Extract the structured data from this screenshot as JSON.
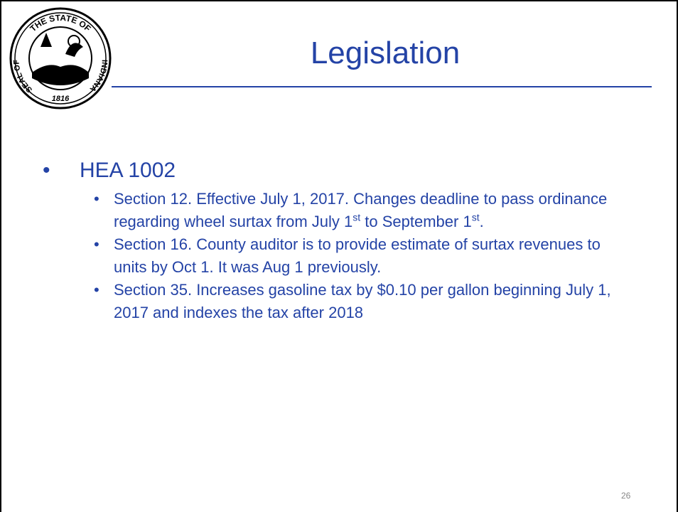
{
  "seal": {
    "top": "THE STATE OF",
    "left": "SEAL OF",
    "right": "INDIANA",
    "year": "1816"
  },
  "title": "Legislation",
  "bullets": [
    {
      "text": "HEA 1002",
      "items": [
        {
          "parts": [
            {
              "text": "Section 12. Effective July 1, 2017. Changes deadline to pass ordinance regarding wheel surtax from July 1"
            },
            {
              "sup": "st"
            },
            {
              "text": " to September 1"
            },
            {
              "sup": "st"
            },
            {
              "text": "."
            }
          ]
        },
        {
          "parts": [
            {
              "text": "Section 16. County auditor is to provide estimate of surtax revenues to units by Oct 1. It was Aug 1 previously."
            }
          ]
        },
        {
          "parts": [
            {
              "text": "Section 35. Increases gasoline tax by $0.10 per gallon beginning July 1, 2017 and indexes the tax after 2018"
            }
          ]
        }
      ]
    }
  ],
  "slide_number": "26"
}
